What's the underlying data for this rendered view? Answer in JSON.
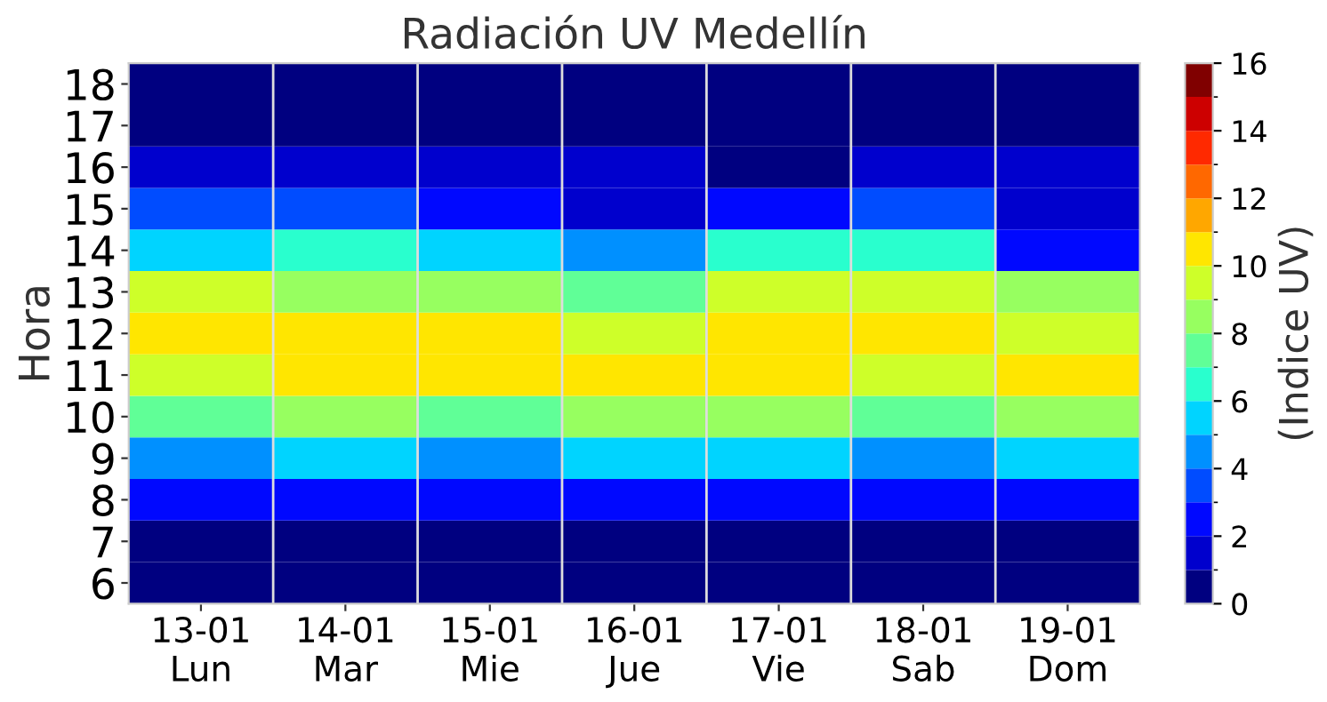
{
  "chart_data": {
    "type": "heatmap",
    "title": "Radiación UV Medellín",
    "ylabel": "Hora",
    "clabel": "(Indice UV)",
    "categories": [
      "13-01\nLun",
      "14-01\nMar",
      "15-01\nMie",
      "16-01\nJue",
      "17-01\nVie",
      "18-01\nSab",
      "19-01\nDom"
    ],
    "y_categories": [
      "18",
      "17",
      "16",
      "15",
      "14",
      "13",
      "12",
      "11",
      "10",
      "9",
      "8",
      "7",
      "6"
    ],
    "cells": [
      [
        0.5,
        0.5,
        0.5,
        0.5,
        0.5,
        0.5,
        0.5
      ],
      [
        0.5,
        0.5,
        0.5,
        0.5,
        0.5,
        0.5,
        0.5
      ],
      [
        1.5,
        1.5,
        1.5,
        1.5,
        0.5,
        1.5,
        1.5
      ],
      [
        3.5,
        3.5,
        2.5,
        1.5,
        2.5,
        3.5,
        1.5
      ],
      [
        5.5,
        6.5,
        5.5,
        4.5,
        6.5,
        6.5,
        2.5
      ],
      [
        9.5,
        8.5,
        8.5,
        7.5,
        9.5,
        9.5,
        8.5
      ],
      [
        10.5,
        10.5,
        10.5,
        9.5,
        10.5,
        10.5,
        9.5
      ],
      [
        9.5,
        10.5,
        10.5,
        10.5,
        10.5,
        9.5,
        10.5
      ],
      [
        7.5,
        8.5,
        7.5,
        8.5,
        8.5,
        7.5,
        8.5
      ],
      [
        4.5,
        5.5,
        4.5,
        5.5,
        5.5,
        4.5,
        5.5
      ],
      [
        2.5,
        2.5,
        2.5,
        2.5,
        2.5,
        2.5,
        2.5
      ],
      [
        0.5,
        0.5,
        0.5,
        0.5,
        0.5,
        0.5,
        0.5
      ],
      [
        0.5,
        0.5,
        0.5,
        0.5,
        0.5,
        0.5,
        0.5
      ]
    ],
    "clim": [
      0,
      16
    ],
    "cticks": [
      0,
      2,
      4,
      6,
      8,
      10,
      12,
      14,
      16
    ],
    "grid": "x"
  }
}
